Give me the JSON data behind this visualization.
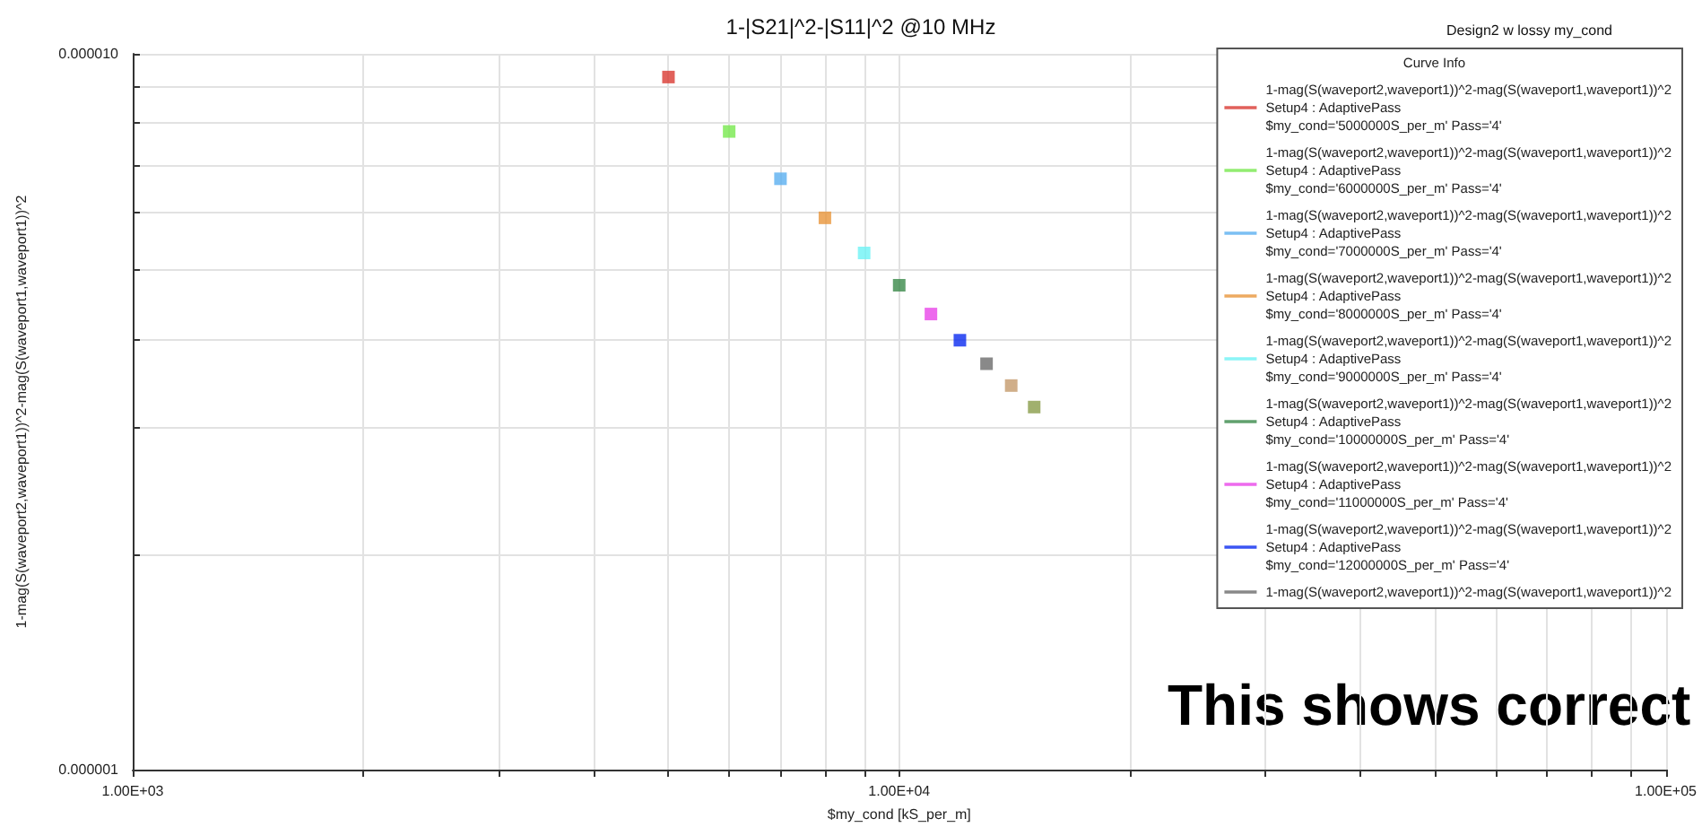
{
  "chart_data": {
    "type": "scatter",
    "title": "1-|S21|^2-|S11|^2 @10 MHz",
    "subtitle": "Design2 w lossy my_cond",
    "xlabel": "$my_cond [kS_per_m]",
    "ylabel": "1-mag(S(waveport2,waveport1))^2-mag(S(waveport1,waveport1))^2",
    "legend_title": "Curve Info",
    "annotations": [
      "This shows correct"
    ],
    "log": "xy",
    "grid": true,
    "legend": "top right",
    "marker": "square",
    "xlim": [
      1000,
      100000
    ],
    "ylim": [
      1e-06,
      1e-05
    ],
    "xticks": [
      {
        "value": 1000,
        "label": "1.00E+03"
      },
      {
        "value": 2000,
        "label": null
      },
      {
        "value": 3000,
        "label": null
      },
      {
        "value": 4000,
        "label": null
      },
      {
        "value": 5000,
        "label": null
      },
      {
        "value": 6000,
        "label": null
      },
      {
        "value": 7000,
        "label": null
      },
      {
        "value": 8000,
        "label": null
      },
      {
        "value": 9000,
        "label": null
      },
      {
        "value": 10000,
        "label": "1.00E+04"
      },
      {
        "value": 20000,
        "label": null
      },
      {
        "value": 30000,
        "label": null
      },
      {
        "value": 40000,
        "label": null
      },
      {
        "value": 50000,
        "label": null
      },
      {
        "value": 60000,
        "label": null
      },
      {
        "value": 70000,
        "label": null
      },
      {
        "value": 80000,
        "label": null
      },
      {
        "value": 90000,
        "label": null
      },
      {
        "value": 100000,
        "label": "1.00E+05"
      }
    ],
    "yticks": [
      {
        "value": 1e-06,
        "label": "0.000001"
      },
      {
        "value": 2e-06,
        "label": null
      },
      {
        "value": 3e-06,
        "label": null
      },
      {
        "value": 4e-06,
        "label": null
      },
      {
        "value": 5e-06,
        "label": null
      },
      {
        "value": 6e-06,
        "label": null
      },
      {
        "value": 7e-06,
        "label": null
      },
      {
        "value": 8e-06,
        "label": null
      },
      {
        "value": 9e-06,
        "label": null
      },
      {
        "value": 1e-05,
        "label": "0.000010"
      }
    ],
    "series": [
      {
        "name": "1-mag(S(waveport2,waveport1))^2-mag(S(waveport1,waveport1))^2\nSetup4 : AdaptivePass\n$my_cond='5000000S_per_m' Pass='4'",
        "color": "#d93a32",
        "x": [
          5000
        ],
        "values": [
          9.28e-06
        ]
      },
      {
        "name": "1-mag(S(waveport2,waveport1))^2-mag(S(waveport1,waveport1))^2\nSetup4 : AdaptivePass\n$my_cond='6000000S_per_m' Pass='4'",
        "color": "#77e84d",
        "x": [
          6000
        ],
        "values": [
          7.79e-06
        ]
      },
      {
        "name": "1-mag(S(waveport2,waveport1))^2-mag(S(waveport1,waveport1))^2\nSetup4 : AdaptivePass\n$my_cond='7000000S_per_m' Pass='4'",
        "color": "#5aaff0",
        "x": [
          7000
        ],
        "values": [
          6.69e-06
        ]
      },
      {
        "name": "1-mag(S(waveport2,waveport1))^2-mag(S(waveport1,waveport1))^2\nSetup4 : AdaptivePass\n$my_cond='8000000S_per_m' Pass='4'",
        "color": "#e8953a",
        "x": [
          8000
        ],
        "values": [
          5.9e-06
        ]
      },
      {
        "name": "1-mag(S(waveport2,waveport1))^2-mag(S(waveport1,waveport1))^2\nSetup4 : AdaptivePass\n$my_cond='9000000S_per_m' Pass='4'",
        "color": "#6ef2f5",
        "x": [
          9000
        ],
        "values": [
          5.27e-06
        ]
      },
      {
        "name": "1-mag(S(waveport2,waveport1))^2-mag(S(waveport1,waveport1))^2\nSetup4 : AdaptivePass\n$my_cond='10000000S_per_m' Pass='4'",
        "color": "#3a8a4a",
        "x": [
          10000
        ],
        "values": [
          4.75e-06
        ]
      },
      {
        "name": "1-mag(S(waveport2,waveport1))^2-mag(S(waveport1,waveport1))^2\nSetup4 : AdaptivePass\n$my_cond='11000000S_per_m' Pass='4'",
        "color": "#e845e8",
        "x": [
          11000
        ],
        "values": [
          4.33e-06
        ]
      },
      {
        "name": "1-mag(S(waveport2,waveport1))^2-mag(S(waveport1,waveport1))^2\nSetup4 : AdaptivePass\n$my_cond='12000000S_per_m' Pass='4'",
        "color": "#0a2bf0",
        "x": [
          12000
        ],
        "values": [
          3.98e-06
        ]
      },
      {
        "name": "1-mag(S(waveport2,waveport1))^2-mag(S(waveport1,waveport1))^2",
        "color": "#6b6b6b",
        "x": [
          13000
        ],
        "values": [
          3.69e-06
        ]
      },
      {
        "color": "#c49a6c",
        "x": [
          14000
        ],
        "values": [
          3.44e-06
        ]
      },
      {
        "color": "#8a9c4a",
        "x": [
          15000
        ],
        "values": [
          3.21e-06
        ]
      }
    ]
  }
}
